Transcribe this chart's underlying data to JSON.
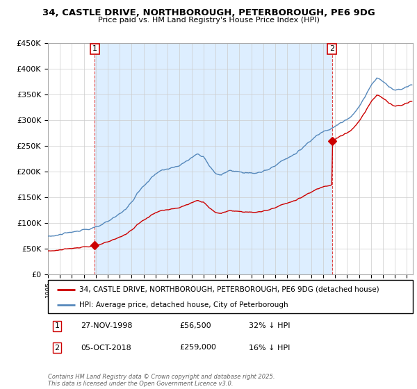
{
  "title_line1": "34, CASTLE DRIVE, NORTHBOROUGH, PETERBOROUGH, PE6 9DG",
  "title_line2": "Price paid vs. HM Land Registry's House Price Index (HPI)",
  "sale1_date": "27-NOV-1998",
  "sale1_price": 56500,
  "sale1_year": 1998.91,
  "sale2_date": "05-OCT-2018",
  "sale2_price": 259000,
  "sale2_year": 2018.75,
  "legend1": "34, CASTLE DRIVE, NORTHBOROUGH, PETERBOROUGH, PE6 9DG (detached house)",
  "legend2": "HPI: Average price, detached house, City of Peterborough",
  "footer": "Contains HM Land Registry data © Crown copyright and database right 2025.\nThis data is licensed under the Open Government Licence v3.0.",
  "red_color": "#cc0000",
  "blue_color": "#5588bb",
  "shade_color": "#ddeeff",
  "ylim_max": 450000,
  "xlim_start": 1995.0,
  "xlim_end": 2025.5,
  "hpi_data": [
    [
      1995.0,
      74000
    ],
    [
      1995.5,
      75000
    ],
    [
      1996.0,
      77000
    ],
    [
      1996.5,
      79000
    ],
    [
      1997.0,
      82000
    ],
    [
      1997.5,
      85000
    ],
    [
      1998.0,
      87000
    ],
    [
      1998.5,
      88000
    ],
    [
      1999.0,
      91000
    ],
    [
      1999.5,
      96000
    ],
    [
      2000.0,
      102000
    ],
    [
      2000.5,
      110000
    ],
    [
      2001.0,
      118000
    ],
    [
      2001.5,
      127000
    ],
    [
      2002.0,
      140000
    ],
    [
      2002.5,
      158000
    ],
    [
      2003.0,
      172000
    ],
    [
      2003.5,
      183000
    ],
    [
      2004.0,
      196000
    ],
    [
      2004.5,
      202000
    ],
    [
      2005.0,
      205000
    ],
    [
      2005.5,
      207000
    ],
    [
      2006.0,
      212000
    ],
    [
      2006.5,
      218000
    ],
    [
      2007.0,
      226000
    ],
    [
      2007.5,
      234000
    ],
    [
      2008.0,
      229000
    ],
    [
      2008.5,
      210000
    ],
    [
      2009.0,
      196000
    ],
    [
      2009.5,
      193000
    ],
    [
      2010.0,
      200000
    ],
    [
      2010.5,
      202000
    ],
    [
      2011.0,
      199000
    ],
    [
      2011.5,
      198000
    ],
    [
      2012.0,
      196000
    ],
    [
      2012.5,
      197000
    ],
    [
      2013.0,
      200000
    ],
    [
      2013.5,
      205000
    ],
    [
      2014.0,
      212000
    ],
    [
      2014.5,
      220000
    ],
    [
      2015.0,
      225000
    ],
    [
      2015.5,
      232000
    ],
    [
      2016.0,
      240000
    ],
    [
      2016.5,
      250000
    ],
    [
      2017.0,
      260000
    ],
    [
      2017.5,
      270000
    ],
    [
      2018.0,
      278000
    ],
    [
      2018.5,
      282000
    ],
    [
      2019.0,
      288000
    ],
    [
      2019.5,
      295000
    ],
    [
      2020.0,
      300000
    ],
    [
      2020.5,
      310000
    ],
    [
      2021.0,
      325000
    ],
    [
      2021.5,
      345000
    ],
    [
      2022.0,
      368000
    ],
    [
      2022.5,
      382000
    ],
    [
      2023.0,
      375000
    ],
    [
      2023.5,
      365000
    ],
    [
      2024.0,
      358000
    ],
    [
      2024.5,
      360000
    ],
    [
      2025.0,
      365000
    ],
    [
      2025.3,
      368000
    ]
  ]
}
